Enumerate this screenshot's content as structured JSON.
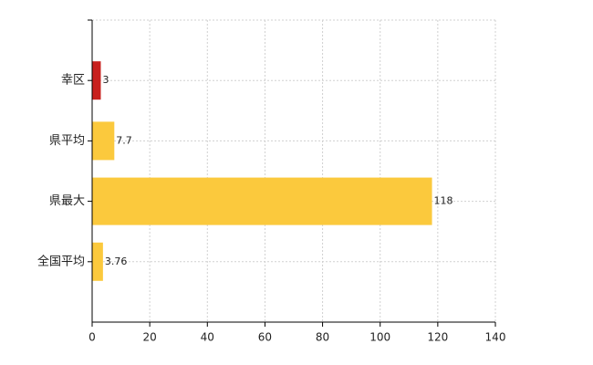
{
  "chart_data": {
    "type": "bar",
    "orientation": "horizontal",
    "categories": [
      "幸区",
      "県平均",
      "県最大",
      "全国平均"
    ],
    "values": [
      3,
      7.7,
      118,
      3.76
    ],
    "colors": [
      "#c8201e",
      "#fbc93d",
      "#fbc93d",
      "#fbc93d"
    ],
    "xlim": [
      0,
      140
    ],
    "xticks": [
      0,
      20,
      40,
      60,
      80,
      100,
      120,
      140
    ],
    "grid": true
  }
}
